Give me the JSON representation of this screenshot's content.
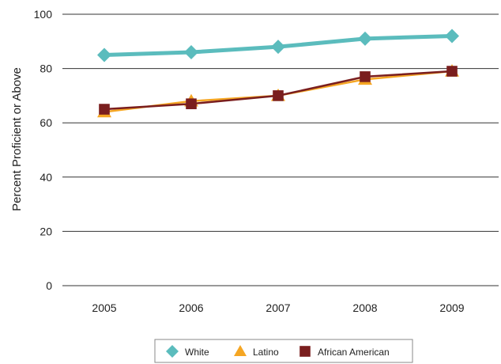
{
  "chart_data": {
    "type": "line",
    "categories": [
      "2005",
      "2006",
      "2007",
      "2008",
      "2009"
    ],
    "ylabel": "Percent Proficient or Above",
    "xlabel": "",
    "ylim": [
      0,
      100
    ],
    "yticks": [
      0,
      20,
      40,
      60,
      80,
      100
    ],
    "grid": "horizontal",
    "legend_position": "bottom",
    "series": [
      {
        "name": "White",
        "values": [
          85,
          86,
          88,
          91,
          92
        ],
        "color": "#5bbcbd",
        "marker": "diamond"
      },
      {
        "name": "Latino",
        "values": [
          64,
          68,
          70,
          76,
          79
        ],
        "color": "#f5a623",
        "marker": "triangle"
      },
      {
        "name": "African American",
        "values": [
          65,
          67,
          70,
          77,
          79
        ],
        "color": "#7a1e1e",
        "marker": "square"
      }
    ]
  }
}
